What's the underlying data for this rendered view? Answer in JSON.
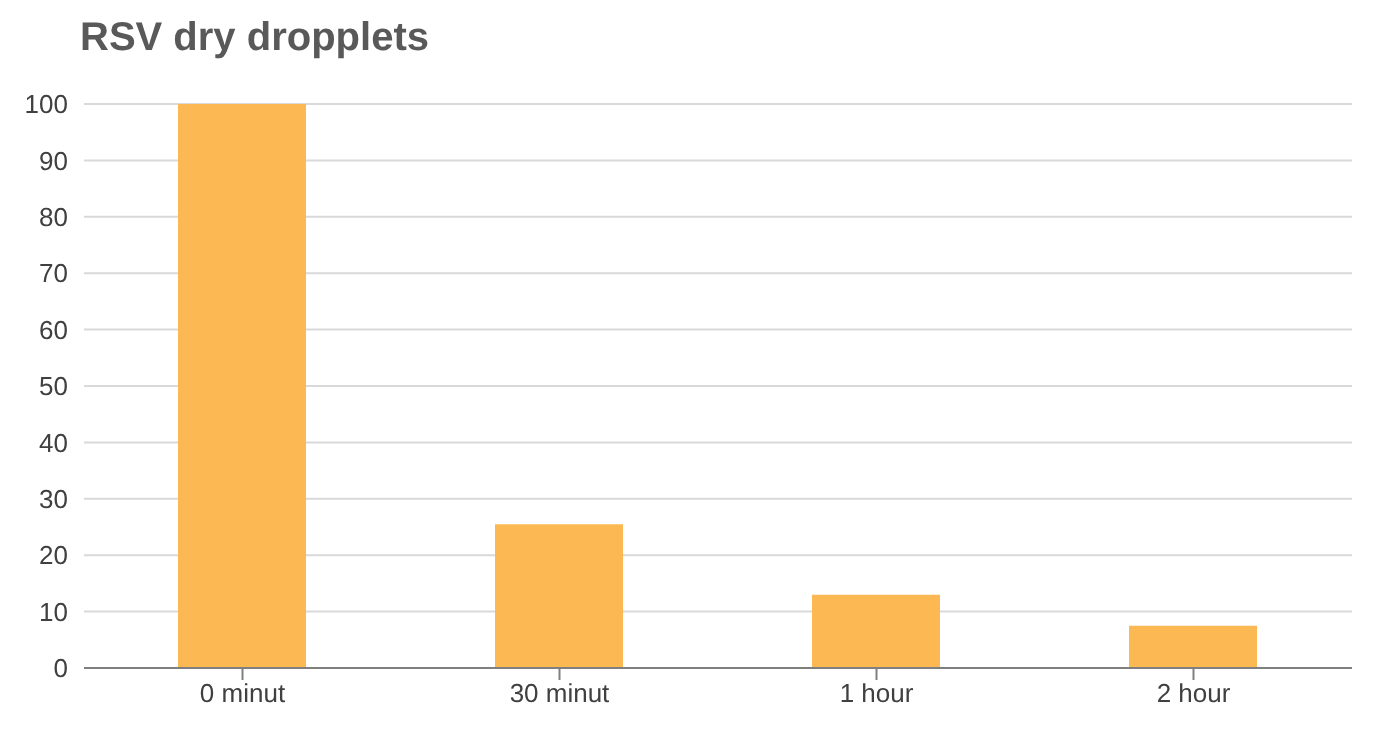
{
  "chart_data": {
    "type": "bar",
    "title": "RSV dry dropplets",
    "categories": [
      "0 minut",
      "30 minut",
      "1 hour",
      "2 hour"
    ],
    "values": [
      100,
      25.5,
      13,
      7.5
    ],
    "color": "#fbb853",
    "ylim": [
      0,
      100
    ],
    "yticks": [
      0,
      10,
      20,
      30,
      40,
      50,
      60,
      70,
      80,
      90,
      100
    ],
    "grid": "y"
  }
}
